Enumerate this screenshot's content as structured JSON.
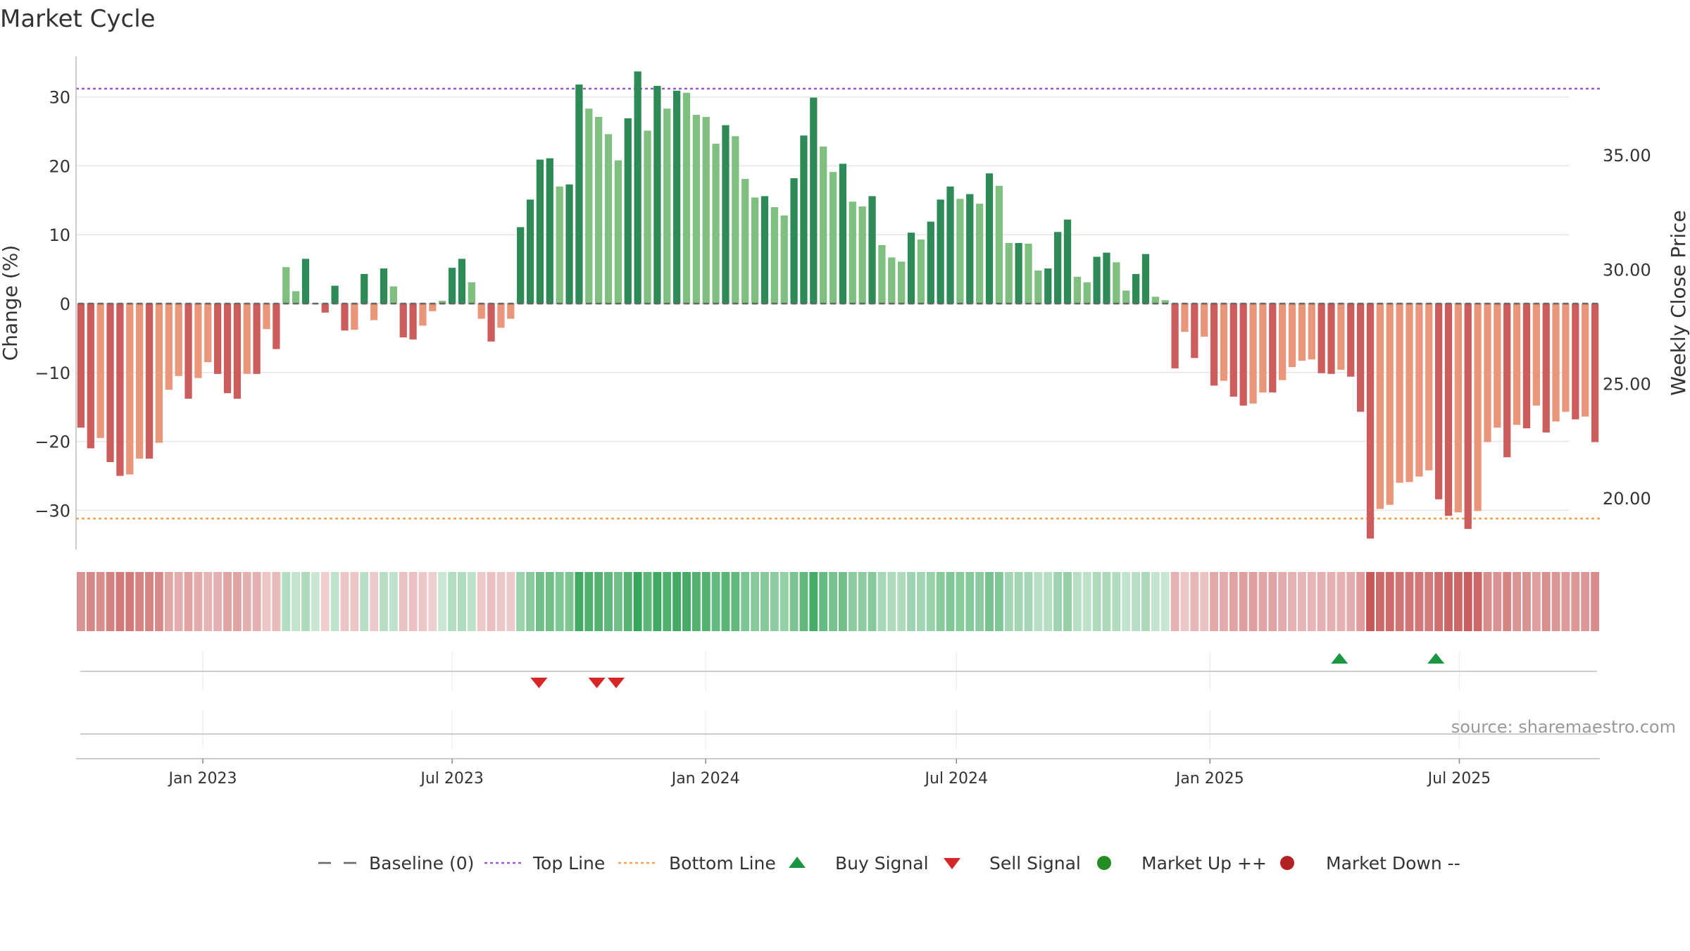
{
  "title": "Market Cycle",
  "source": "source: sharemaestro.com",
  "colors": {
    "up_strong": "#2e8b57",
    "up_light": "#7fbf7f",
    "down_strong": "#cd5c5c",
    "down_light": "#e9967a",
    "top_line": "#9b59d0",
    "bottom_line": "#f0a050",
    "baseline": "#666666",
    "buy": "#1a9641",
    "sell": "#d62728",
    "market_up": "#228b22",
    "market_down": "#b22222"
  },
  "legend": [
    {
      "key": "baseline",
      "label": "Baseline (0)",
      "icon": "dash-line-icon"
    },
    {
      "key": "top",
      "label": "Top Line",
      "icon": "dotted-line-icon"
    },
    {
      "key": "bottom",
      "label": "Bottom Line",
      "icon": "dotted-line-icon"
    },
    {
      "key": "buy",
      "label": "Buy Signal",
      "icon": "triangle-up-icon"
    },
    {
      "key": "sell",
      "label": "Sell Signal",
      "icon": "triangle-down-icon"
    },
    {
      "key": "mup",
      "label": "Market Up ++",
      "icon": "circle-icon"
    },
    {
      "key": "mdown",
      "label": "Market Down --",
      "icon": "circle-icon"
    }
  ],
  "chart_data": {
    "type": "bar",
    "ylabel": "Change (%)",
    "y2label": "Weekly Close Price",
    "ylim": [
      -36.5,
      36.5
    ],
    "y2lim": [
      17.5,
      39.5
    ],
    "y_ticks": [
      30,
      20,
      10,
      0,
      -10,
      -20,
      -30
    ],
    "y_tick_labels": [
      "30",
      "20",
      "10",
      "0",
      "−10",
      "−20",
      "−30"
    ],
    "y2_ticks": [
      35,
      30,
      25,
      20
    ],
    "y2_tick_labels": [
      "35.00",
      "30.00",
      "25.00",
      "20.00"
    ],
    "top_line": 31.2,
    "bottom_line": -31.2,
    "x_start": "2022-10-01",
    "x_end": "2025-10-11",
    "x_ticks": [
      "2023-01-01",
      "2023-07-01",
      "2024-01-01",
      "2024-07-01",
      "2025-01-01",
      "2025-07-01"
    ],
    "x_tick_labels": [
      "Jan 2023",
      "Jul 2023",
      "Jan 2024",
      "Jul 2024",
      "Jan 2025",
      "Jul 2025"
    ],
    "grid": true,
    "legend_position": "bottom",
    "values": [
      -18,
      -21,
      -19.5,
      -23,
      -25,
      -24.8,
      -22.5,
      -22.5,
      -20.2,
      -12.5,
      -10.5,
      -13.8,
      -10.8,
      -8.5,
      -10.2,
      -13,
      -13.8,
      -10.2,
      -10.2,
      -3.7,
      -6.6,
      5.3,
      1.8,
      6.5,
      0,
      -1.3,
      2.6,
      -3.9,
      -3.8,
      4.3,
      -2.4,
      5.1,
      2.5,
      -4.9,
      -5.2,
      -3.2,
      -1.1,
      0.4,
      5.2,
      6.5,
      3.1,
      -2.2,
      -5.5,
      -3.5,
      -2.2,
      11.1,
      15.1,
      20.9,
      21.1,
      17,
      17.3,
      31.8,
      28.3,
      27.1,
      24.6,
      20.8,
      26.9,
      33.7,
      25.1,
      31.6,
      28.3,
      30.9,
      30.6,
      27.4,
      27.1,
      23.2,
      25.9,
      24.3,
      18.1,
      15.4,
      15.6,
      14,
      12.8,
      18.2,
      24.4,
      29.9,
      22.8,
      19.1,
      20.3,
      14.8,
      14.1,
      15.6,
      8.5,
      6.7,
      6.1,
      10.3,
      9.3,
      11.9,
      15.1,
      17,
      15.2,
      15.9,
      14.5,
      18.9,
      17.1,
      8.8,
      8.8,
      8.7,
      4.8,
      5.1,
      10.4,
      12.2,
      3.9,
      3.1,
      6.8,
      7.4,
      6,
      1.9,
      4.3,
      7.2,
      1,
      0.5,
      -9.4,
      -4.1,
      -7.9,
      -4.8,
      -11.9,
      -11.2,
      -13.5,
      -14.8,
      -14.5,
      -12.9,
      -12.9,
      -11.1,
      -9.2,
      -8.3,
      -8.1,
      -10.1,
      -10.2,
      -9.6,
      -10.6,
      -15.7,
      -34.1,
      -29.8,
      -29.2,
      -26,
      -25.9,
      -25.1,
      -24.2,
      -28.4,
      -30.8,
      -30.3,
      -32.7,
      -30.1,
      -20.1,
      -18,
      -22.3,
      -17.6,
      -18.1,
      -14.8,
      -18.7,
      -17.1,
      -15.7,
      -16.8,
      -16.4,
      -20.1
    ],
    "sell_signals": [
      "2023-09-02",
      "2023-10-14",
      "2023-10-28"
    ],
    "buy_signals": [
      "2025-04-05",
      "2025-06-14"
    ]
  }
}
